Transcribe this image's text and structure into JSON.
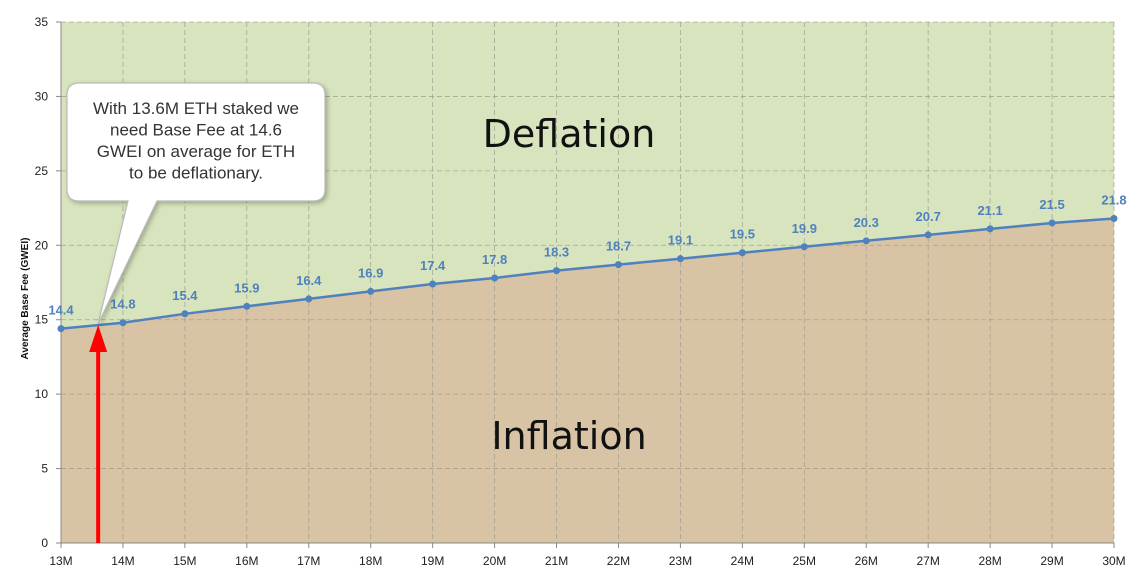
{
  "chart_data": {
    "type": "line",
    "title": "",
    "ylabel": "Average Base Fee (GWEI)",
    "xlabel": "",
    "xlim": [
      13,
      30
    ],
    "ylim": [
      0,
      35
    ],
    "y_ticks": [
      0,
      5,
      10,
      15,
      20,
      25,
      30,
      35
    ],
    "x_ticks": [
      "13M",
      "14M",
      "15M",
      "16M",
      "17M",
      "18M",
      "19M",
      "20M",
      "21M",
      "22M",
      "23M",
      "24M",
      "25M",
      "26M",
      "27M",
      "28M",
      "29M",
      "30M"
    ],
    "grid": true,
    "series": [
      {
        "x": [
          13,
          14,
          15,
          16,
          17,
          18,
          19,
          20,
          21,
          22,
          23,
          24,
          25,
          26,
          27,
          28,
          29,
          30
        ],
        "values": [
          14.4,
          14.8,
          15.4,
          15.9,
          16.4,
          16.9,
          17.4,
          17.8,
          18.3,
          18.7,
          19.1,
          19.5,
          19.9,
          20.3,
          20.7,
          21.1,
          21.5,
          21.8
        ],
        "color": "#4f81bd"
      }
    ],
    "regions": {
      "above": {
        "label": "Deflation",
        "color": "#d7e4bd"
      },
      "below": {
        "label": "Inflation",
        "color": "#d9c3a5"
      }
    },
    "annotations": {
      "callout_lines": [
        "With 13.6M ETH staked we",
        "need Base Fee at 14.6",
        "GWEI on average for ETH",
        "to be deflationary."
      ],
      "arrow": {
        "x": 13.6,
        "color": "#ff0000"
      }
    }
  }
}
